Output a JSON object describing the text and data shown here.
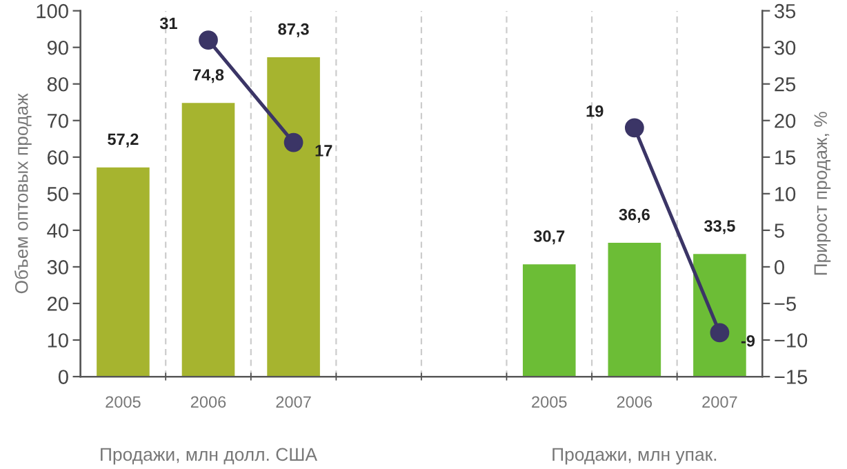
{
  "chart_data": {
    "type": "bar",
    "categories": [
      "2005",
      "2006",
      "2007",
      null,
      null,
      "2005",
      "2006",
      "2007"
    ],
    "series": [
      {
        "colors": [
          "#a6b42f",
          "#a6b42f",
          "#a6b42f",
          null,
          null,
          "#6cbd36",
          "#6cbd36",
          "#6cbd36"
        ],
        "values": [
          57.2,
          74.8,
          87.3,
          null,
          null,
          30.7,
          36.6,
          33.5
        ],
        "value_labels": [
          "57,2",
          "74,8",
          "87,3",
          null,
          null,
          "30,7",
          "36,6",
          "33,5"
        ]
      },
      {
        "type": "line",
        "axis": "y2",
        "color": "#3b3566",
        "marker": "circle",
        "values": [
          null,
          31,
          17,
          null,
          null,
          null,
          19,
          -9
        ],
        "value_labels": [
          null,
          "31",
          "17",
          null,
          null,
          null,
          "19",
          "-9"
        ]
      }
    ],
    "ylabel": "Объем оптовых продаж",
    "y2label": "Прирост продаж, %",
    "ylim": [
      0,
      100
    ],
    "yticks": [
      0,
      10,
      20,
      30,
      40,
      50,
      60,
      70,
      80,
      90,
      100
    ],
    "y2lim": [
      -15,
      35
    ],
    "y2ticks": [
      -15,
      -10,
      -5,
      0,
      5,
      10,
      15,
      20,
      25,
      30,
      35
    ],
    "grid": "x",
    "annotations": [
      "Продажи, млн долл. США",
      "Продажи, млн упак."
    ]
  }
}
